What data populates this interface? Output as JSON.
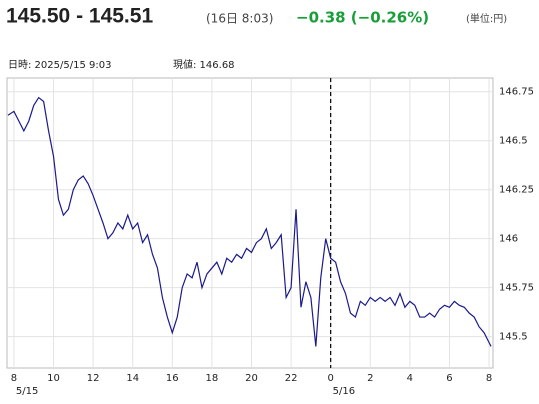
{
  "header": {
    "price": "145.50 - 145.51",
    "time": "(16日 8:03)",
    "change": "−0.38 (−0.26%)",
    "unit": "(単位:円)",
    "datetime": "日時: 2025/5/15  9:03",
    "current": "現値: 146.68"
  },
  "chart_data": {
    "type": "line",
    "color": "#1a1a8c",
    "grid": true,
    "x": [
      7.7,
      8,
      8.25,
      8.5,
      8.75,
      9,
      9.25,
      9.5,
      9.75,
      10,
      10.25,
      10.5,
      10.75,
      11,
      11.25,
      11.5,
      11.75,
      12,
      12.25,
      12.5,
      12.75,
      13,
      13.25,
      13.5,
      13.75,
      14,
      14.25,
      14.5,
      14.75,
      15,
      15.25,
      15.5,
      15.75,
      16,
      16.25,
      16.5,
      16.75,
      17,
      17.25,
      17.5,
      17.75,
      18,
      18.25,
      18.5,
      18.75,
      19,
      19.25,
      19.5,
      19.75,
      20,
      20.25,
      20.5,
      20.75,
      21,
      21.25,
      21.5,
      21.75,
      22,
      22.25,
      22.5,
      22.75,
      23,
      23.25,
      23.5,
      23.75,
      24,
      24.25,
      24.5,
      24.75,
      25,
      25.25,
      25.5,
      25.75,
      26,
      26.25,
      26.5,
      26.75,
      27,
      27.25,
      27.5,
      27.75,
      28,
      28.25,
      28.5,
      28.75,
      29,
      29.25,
      29.5,
      29.75,
      30,
      30.25,
      30.5,
      30.75,
      31,
      31.25,
      31.5,
      31.75,
      32,
      32.1
    ],
    "values": [
      146.63,
      146.65,
      146.6,
      146.55,
      146.6,
      146.68,
      146.72,
      146.7,
      146.55,
      146.42,
      146.2,
      146.12,
      146.15,
      146.25,
      146.3,
      146.32,
      146.28,
      146.22,
      146.15,
      146.08,
      146.0,
      146.03,
      146.08,
      146.05,
      146.12,
      146.05,
      146.08,
      145.98,
      146.02,
      145.92,
      145.85,
      145.7,
      145.6,
      145.52,
      145.6,
      145.75,
      145.82,
      145.8,
      145.88,
      145.75,
      145.82,
      145.85,
      145.88,
      145.82,
      145.9,
      145.88,
      145.92,
      145.9,
      145.95,
      145.93,
      145.98,
      146.0,
      146.05,
      145.95,
      145.98,
      146.02,
      145.7,
      145.75,
      146.15,
      145.65,
      145.78,
      145.7,
      145.45,
      145.8,
      146.0,
      145.9,
      145.88,
      145.78,
      145.72,
      145.62,
      145.6,
      145.68,
      145.66,
      145.7,
      145.68,
      145.7,
      145.68,
      145.7,
      145.66,
      145.72,
      145.65,
      145.68,
      145.66,
      145.6,
      145.6,
      145.62,
      145.6,
      145.64,
      145.66,
      145.65,
      145.68,
      145.66,
      145.65,
      145.62,
      145.6,
      145.55,
      145.52,
      145.47,
      145.45
    ],
    "xlim": [
      7.65,
      32.2
    ],
    "xticks": [
      8,
      10,
      12,
      14,
      16,
      18,
      20,
      22,
      {
        "value": 24,
        "label": "0"
      },
      {
        "value": 26,
        "label": "2"
      },
      {
        "value": 28,
        "label": "4"
      },
      {
        "value": 30,
        "label": "6"
      },
      {
        "value": 32,
        "label": "8"
      }
    ],
    "date_labels": [
      {
        "value": 8,
        "label": "5/15"
      },
      {
        "value": 24,
        "label": "5/16"
      }
    ],
    "vline": 24,
    "ylim": [
      145.34,
      146.82
    ],
    "yticks": [
      145.5,
      145.75,
      146,
      146.25,
      146.5,
      146.75
    ]
  }
}
